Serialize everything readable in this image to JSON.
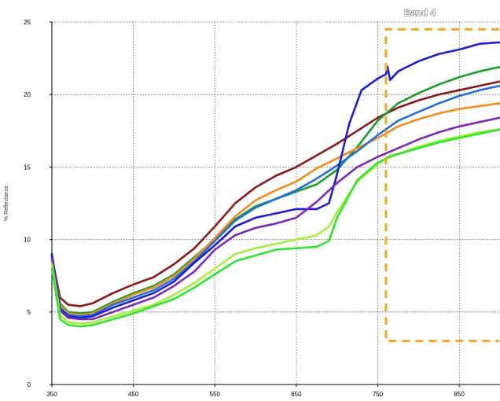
{
  "chart_data": {
    "type": "line",
    "title": "",
    "xlabel": "",
    "ylabel": "% Reflectance",
    "xlim": [
      350,
      900
    ],
    "ylim": [
      0,
      25
    ],
    "xticks": [
      350,
      450,
      550,
      650,
      750,
      850
    ],
    "yticks": [
      0,
      5,
      10,
      15,
      20,
      25
    ],
    "grid": true,
    "annotations": [
      {
        "type": "dashed-box",
        "label": "Band 4",
        "x_range": [
          760,
          900
        ],
        "y_range": [
          3,
          24.5
        ],
        "color": "#f5a623"
      }
    ],
    "series": [
      {
        "color": "#8b1a1a",
        "points": [
          [
            350,
            8.8
          ],
          [
            360,
            6.0
          ],
          [
            370,
            5.5
          ],
          [
            385,
            5.4
          ],
          [
            400,
            5.6
          ],
          [
            425,
            6.3
          ],
          [
            450,
            6.9
          ],
          [
            475,
            7.4
          ],
          [
            500,
            8.3
          ],
          [
            525,
            9.4
          ],
          [
            550,
            10.9
          ],
          [
            575,
            12.5
          ],
          [
            600,
            13.6
          ],
          [
            625,
            14.4
          ],
          [
            650,
            15.0
          ],
          [
            675,
            15.8
          ],
          [
            700,
            16.6
          ],
          [
            725,
            17.5
          ],
          [
            750,
            18.4
          ],
          [
            775,
            19.1
          ],
          [
            800,
            19.6
          ],
          [
            825,
            20.0
          ],
          [
            850,
            20.3
          ],
          [
            875,
            20.6
          ],
          [
            900,
            20.9
          ]
        ]
      },
      {
        "color": "#1a9e2a",
        "points": [
          [
            350,
            8.9
          ],
          [
            360,
            5.6
          ],
          [
            370,
            5.0
          ],
          [
            385,
            4.9
          ],
          [
            400,
            5.0
          ],
          [
            425,
            5.7
          ],
          [
            450,
            6.3
          ],
          [
            475,
            6.8
          ],
          [
            500,
            7.6
          ],
          [
            525,
            8.8
          ],
          [
            550,
            10.0
          ],
          [
            575,
            11.4
          ],
          [
            600,
            12.3
          ],
          [
            625,
            12.8
          ],
          [
            650,
            13.3
          ],
          [
            675,
            13.8
          ],
          [
            700,
            14.8
          ],
          [
            725,
            16.4
          ],
          [
            750,
            18.2
          ],
          [
            775,
            19.4
          ],
          [
            800,
            20.1
          ],
          [
            825,
            20.7
          ],
          [
            850,
            21.2
          ],
          [
            875,
            21.6
          ],
          [
            900,
            21.9
          ]
        ]
      },
      {
        "color": "#f28c1e",
        "points": [
          [
            350,
            8.8
          ],
          [
            360,
            5.5
          ],
          [
            370,
            4.9
          ],
          [
            385,
            4.8
          ],
          [
            400,
            4.9
          ],
          [
            425,
            5.6
          ],
          [
            450,
            6.2
          ],
          [
            475,
            6.7
          ],
          [
            500,
            7.5
          ],
          [
            525,
            8.7
          ],
          [
            550,
            10.1
          ],
          [
            575,
            11.6
          ],
          [
            600,
            12.7
          ],
          [
            625,
            13.4
          ],
          [
            650,
            14.0
          ],
          [
            675,
            14.9
          ],
          [
            700,
            15.6
          ],
          [
            725,
            16.3
          ],
          [
            750,
            17.0
          ],
          [
            775,
            17.8
          ],
          [
            800,
            18.3
          ],
          [
            825,
            18.7
          ],
          [
            850,
            19.0
          ],
          [
            875,
            19.2
          ],
          [
            900,
            19.4
          ]
        ]
      },
      {
        "color": "#1f6fe0",
        "points": [
          [
            350,
            8.9
          ],
          [
            360,
            5.3
          ],
          [
            370,
            4.8
          ],
          [
            385,
            4.7
          ],
          [
            400,
            4.8
          ],
          [
            425,
            5.5
          ],
          [
            450,
            6.0
          ],
          [
            475,
            6.5
          ],
          [
            500,
            7.3
          ],
          [
            525,
            8.5
          ],
          [
            550,
            9.9
          ],
          [
            575,
            11.3
          ],
          [
            600,
            12.2
          ],
          [
            625,
            12.8
          ],
          [
            650,
            13.4
          ],
          [
            675,
            14.2
          ],
          [
            700,
            15.1
          ],
          [
            725,
            16.1
          ],
          [
            750,
            17.2
          ],
          [
            775,
            18.2
          ],
          [
            800,
            18.8
          ],
          [
            825,
            19.4
          ],
          [
            850,
            19.9
          ],
          [
            875,
            20.3
          ],
          [
            900,
            20.6
          ]
        ]
      },
      {
        "color": "#1e1ed2",
        "points": [
          [
            350,
            9.0
          ],
          [
            360,
            5.2
          ],
          [
            370,
            4.7
          ],
          [
            385,
            4.6
          ],
          [
            400,
            4.7
          ],
          [
            425,
            5.3
          ],
          [
            450,
            5.8
          ],
          [
            475,
            6.3
          ],
          [
            500,
            7.1
          ],
          [
            525,
            8.4
          ],
          [
            550,
            9.6
          ],
          [
            575,
            10.9
          ],
          [
            600,
            11.5
          ],
          [
            625,
            11.8
          ],
          [
            650,
            12.1
          ],
          [
            675,
            12.1
          ],
          [
            690,
            12.5
          ],
          [
            700,
            14.5
          ],
          [
            715,
            18.0
          ],
          [
            730,
            20.3
          ],
          [
            750,
            21.1
          ],
          [
            760,
            21.4
          ],
          [
            762,
            21.9
          ],
          [
            765,
            21.0
          ],
          [
            775,
            21.6
          ],
          [
            800,
            22.3
          ],
          [
            825,
            22.8
          ],
          [
            850,
            23.1
          ],
          [
            875,
            23.5
          ],
          [
            900,
            23.6
          ]
        ]
      },
      {
        "color": "#7b2bb8",
        "points": [
          [
            350,
            8.7
          ],
          [
            360,
            5.1
          ],
          [
            370,
            4.6
          ],
          [
            385,
            4.5
          ],
          [
            400,
            4.5
          ],
          [
            425,
            5.0
          ],
          [
            450,
            5.5
          ],
          [
            475,
            6.0
          ],
          [
            500,
            6.8
          ],
          [
            525,
            7.8
          ],
          [
            550,
            9.3
          ],
          [
            575,
            10.3
          ],
          [
            600,
            10.8
          ],
          [
            625,
            11.1
          ],
          [
            650,
            11.5
          ],
          [
            675,
            12.6
          ],
          [
            700,
            13.9
          ],
          [
            725,
            15.0
          ],
          [
            750,
            15.7
          ],
          [
            775,
            16.3
          ],
          [
            800,
            16.9
          ],
          [
            825,
            17.4
          ],
          [
            850,
            17.8
          ],
          [
            875,
            18.1
          ],
          [
            900,
            18.4
          ]
        ]
      },
      {
        "color": "#a6f03a",
        "points": [
          [
            350,
            8.3
          ],
          [
            360,
            4.8
          ],
          [
            370,
            4.3
          ],
          [
            385,
            4.2
          ],
          [
            400,
            4.3
          ],
          [
            425,
            4.7
          ],
          [
            450,
            5.1
          ],
          [
            475,
            5.5
          ],
          [
            500,
            6.2
          ],
          [
            525,
            7.0
          ],
          [
            550,
            8.0
          ],
          [
            575,
            9.0
          ],
          [
            600,
            9.4
          ],
          [
            625,
            9.7
          ],
          [
            650,
            10.0
          ],
          [
            675,
            10.3
          ],
          [
            690,
            10.9
          ],
          [
            700,
            11.9
          ],
          [
            725,
            14.0
          ],
          [
            750,
            15.2
          ],
          [
            765,
            15.8
          ],
          [
            775,
            15.9
          ],
          [
            800,
            16.4
          ],
          [
            825,
            16.8
          ],
          [
            850,
            17.1
          ],
          [
            875,
            17.4
          ],
          [
            900,
            17.6
          ]
        ]
      },
      {
        "color": "#2ee62e",
        "points": [
          [
            350,
            8.0
          ],
          [
            360,
            4.5
          ],
          [
            370,
            4.1
          ],
          [
            385,
            4.0
          ],
          [
            400,
            4.1
          ],
          [
            425,
            4.5
          ],
          [
            450,
            4.9
          ],
          [
            475,
            5.4
          ],
          [
            500,
            5.9
          ],
          [
            525,
            6.7
          ],
          [
            550,
            7.6
          ],
          [
            575,
            8.5
          ],
          [
            600,
            8.9
          ],
          [
            625,
            9.3
          ],
          [
            650,
            9.4
          ],
          [
            675,
            9.5
          ],
          [
            690,
            9.9
          ],
          [
            700,
            11.5
          ],
          [
            725,
            14.1
          ],
          [
            750,
            15.3
          ],
          [
            765,
            15.7
          ],
          [
            775,
            15.9
          ],
          [
            800,
            16.3
          ],
          [
            825,
            16.7
          ],
          [
            850,
            17.0
          ],
          [
            875,
            17.3
          ],
          [
            900,
            17.6
          ]
        ]
      }
    ]
  }
}
